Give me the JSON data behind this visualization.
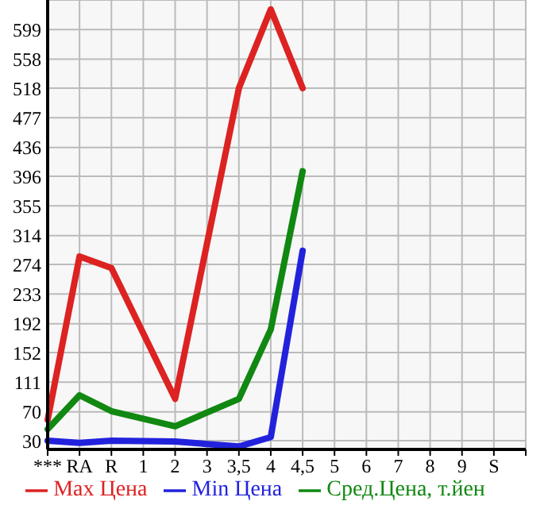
{
  "chart_data": {
    "type": "line",
    "categories": [
      "***",
      "RA",
      "R",
      "1",
      "2",
      "3",
      "3,5",
      "4",
      "4,5",
      "5",
      "6",
      "7",
      "8",
      "9",
      "S",
      null
    ],
    "series": [
      {
        "name": "Max Цена",
        "color": "#dd2222",
        "values": [
          59,
          285,
          269,
          null,
          88,
          null,
          518,
          627,
          518,
          null,
          null,
          null,
          null,
          null,
          null,
          null
        ]
      },
      {
        "name": "Min Цена",
        "color": "#2222dd",
        "values": [
          30,
          27,
          30,
          null,
          29,
          null,
          22,
          35,
          293,
          null,
          null,
          null,
          null,
          null,
          null,
          null
        ]
      },
      {
        "name": "Сред.Цена, т.йен",
        "color": "#118811",
        "values": [
          46,
          93,
          71,
          null,
          50,
          null,
          88,
          184,
          403,
          null,
          null,
          null,
          null,
          null,
          null,
          null
        ]
      }
    ],
    "ylim": [
      18,
      640
    ],
    "yticks": [
      30,
      70,
      111,
      152,
      192,
      233,
      274,
      314,
      355,
      396,
      436,
      477,
      518,
      558,
      599
    ],
    "grid": true,
    "legend": "bottom",
    "marker": "none",
    "line_style": "solid"
  }
}
